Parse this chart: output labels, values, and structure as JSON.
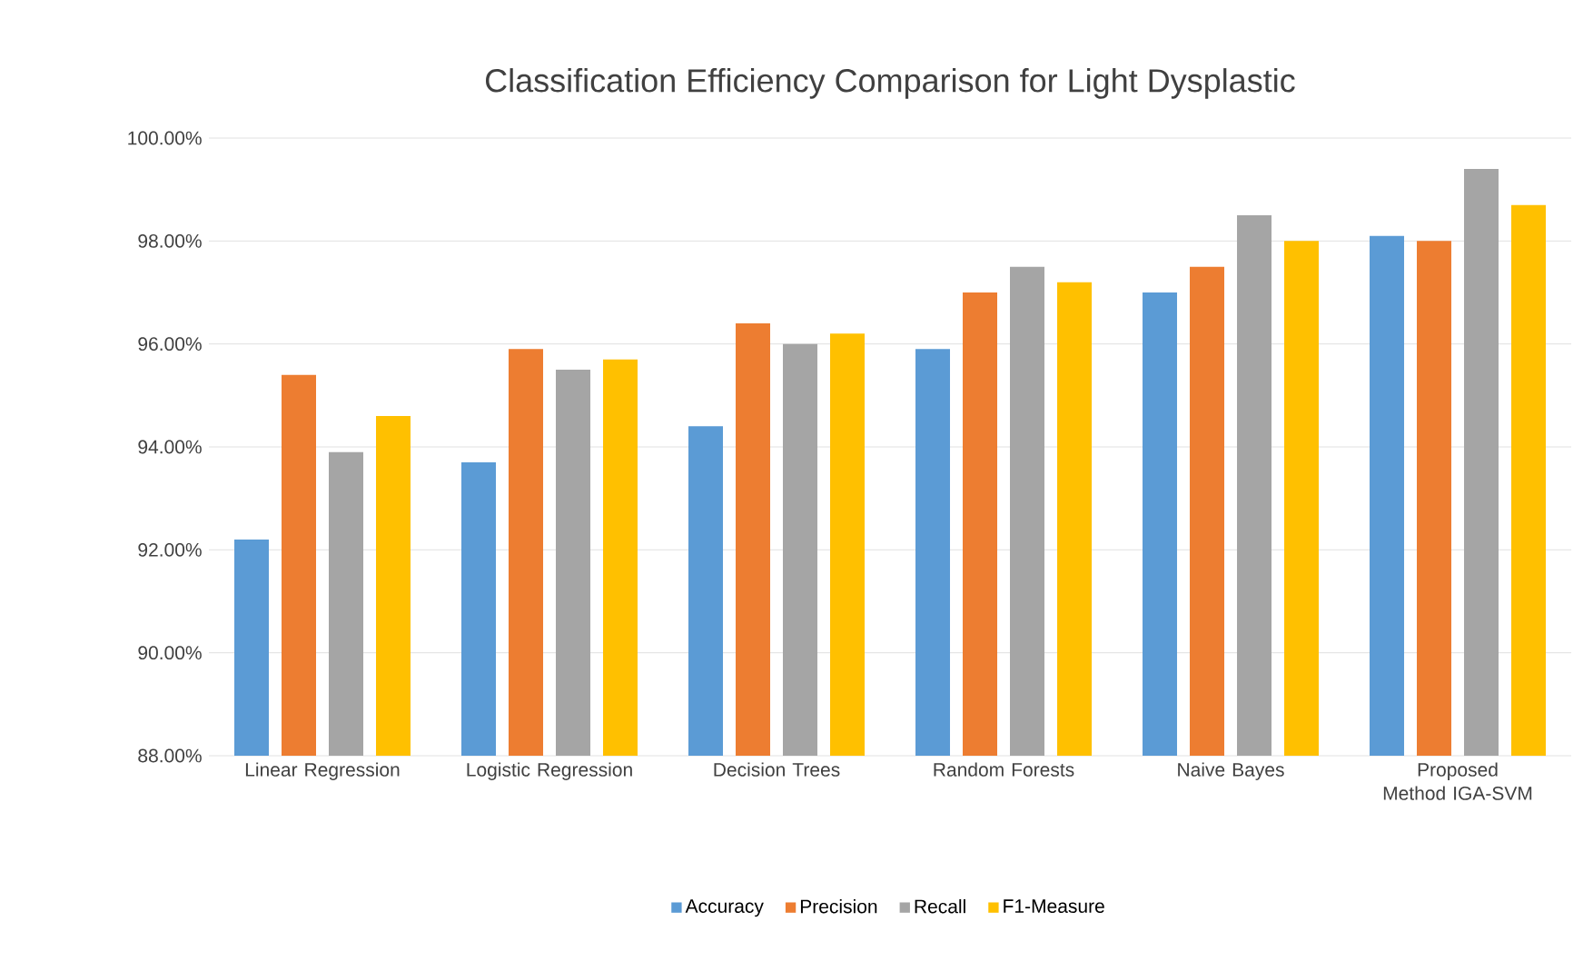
{
  "chart_data": {
    "type": "bar",
    "title": "Classification Efficiency Comparison for Light Dysplastic",
    "categories": [
      "Linear Regression",
      "Logistic Regression",
      "Decision Trees",
      "Random Forests",
      "Naive Bayes",
      "Proposed Method IGA-SVM"
    ],
    "series": [
      {
        "name": "Accuracy",
        "color": "#5b9bd5",
        "values": [
          92.2,
          93.7,
          94.4,
          95.9,
          97.0,
          98.1
        ]
      },
      {
        "name": "Precision",
        "color": "#ed7d31",
        "values": [
          95.4,
          95.9,
          96.4,
          97.0,
          97.5,
          98.0
        ]
      },
      {
        "name": "Recall",
        "color": "#a5a5a5",
        "values": [
          93.9,
          95.5,
          96.0,
          97.5,
          98.5,
          99.4
        ]
      },
      {
        "name": "F1-Measure",
        "color": "#ffc000",
        "values": [
          94.6,
          95.7,
          96.2,
          97.2,
          98.0,
          98.7
        ]
      }
    ],
    "ylim": [
      88,
      100
    ],
    "yticks": [
      {
        "value": 88,
        "label": "88.00%"
      },
      {
        "value": 90,
        "label": "90.00%"
      },
      {
        "value": 92,
        "label": "92.00%"
      },
      {
        "value": 94,
        "label": "94.00%"
      },
      {
        "value": 96,
        "label": "96.00%"
      },
      {
        "value": 98,
        "label": "98.00%"
      },
      {
        "value": 100,
        "label": "100.00%"
      }
    ],
    "grid": "y",
    "legend": "bottom"
  }
}
